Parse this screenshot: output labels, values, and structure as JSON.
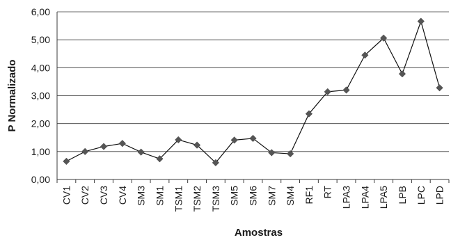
{
  "chart_data": {
    "type": "line",
    "title": "",
    "xlabel": "Amostras",
    "ylabel": "P Normalizado",
    "ylim": [
      0,
      6
    ],
    "yticks": [
      "0,00",
      "1,00",
      "2,00",
      "3,00",
      "4,00",
      "5,00",
      "6,00"
    ],
    "grid": true,
    "legend": "none",
    "marker": "diamond",
    "marker_color": "#555555",
    "line_color": "#111111",
    "categories": [
      "CV1",
      "CV2",
      "CV3",
      "CV4",
      "SM3",
      "SM1",
      "TSM1",
      "TSM2",
      "TSM3",
      "SM5",
      "SM6",
      "SM7",
      "SM4",
      "RF1",
      "RT",
      "LPA3",
      "LPA4",
      "LPA5",
      "LPB",
      "LPC",
      "LPD"
    ],
    "series": [
      {
        "values": [
          0.65,
          1.0,
          1.18,
          1.29,
          0.98,
          0.74,
          1.42,
          1.23,
          0.6,
          1.41,
          1.47,
          0.96,
          0.92,
          2.35,
          3.14,
          3.2,
          4.45,
          5.06,
          3.78,
          5.66,
          3.28
        ]
      }
    ]
  }
}
